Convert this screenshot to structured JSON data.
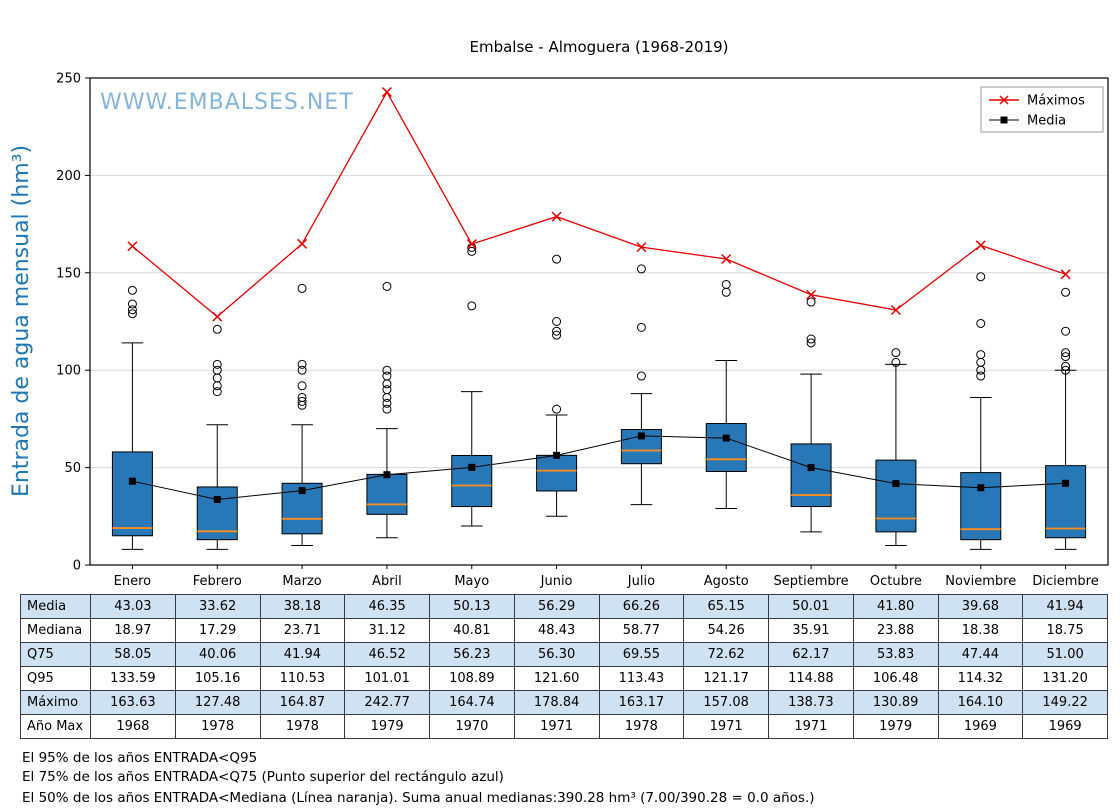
{
  "chart_data": {
    "type": "boxplot",
    "title": "Embalse - Almoguera (1968-2019)",
    "watermark": "WWW.EMBALSES.NET",
    "ylabel": "Entrada de agua mensual (hm³)",
    "ylim": [
      0,
      250
    ],
    "yticks": [
      0,
      50,
      100,
      150,
      200,
      250
    ],
    "grid": true,
    "categories": [
      "Enero",
      "Febrero",
      "Marzo",
      "Abril",
      "Mayo",
      "Junio",
      "Julio",
      "Agosto",
      "Septiembre",
      "Octubre",
      "Noviembre",
      "Diciembre"
    ],
    "legend": {
      "position": "top-right",
      "entries": [
        {
          "label": "Máximos",
          "marker": "x",
          "color": "#e50000"
        },
        {
          "label": "Media",
          "marker": "square",
          "color": "#000000"
        }
      ]
    },
    "series": {
      "media": [
        43.03,
        33.62,
        38.18,
        46.35,
        50.13,
        56.29,
        66.26,
        65.15,
        50.01,
        41.8,
        39.68,
        41.94
      ],
      "mediana": [
        18.97,
        17.29,
        23.71,
        31.12,
        40.81,
        48.43,
        58.77,
        54.26,
        35.91,
        23.88,
        18.38,
        18.75
      ],
      "q75": [
        58.05,
        40.06,
        41.94,
        46.52,
        56.23,
        56.3,
        69.55,
        72.62,
        62.17,
        53.83,
        47.44,
        51.0
      ],
      "q95": [
        133.59,
        105.16,
        110.53,
        101.01,
        108.89,
        121.6,
        113.43,
        121.17,
        114.88,
        106.48,
        114.32,
        131.2
      ],
      "maximo": [
        163.63,
        127.48,
        164.87,
        242.77,
        164.74,
        178.84,
        163.17,
        157.08,
        138.73,
        130.89,
        164.1,
        149.22
      ]
    },
    "anio_max": [
      1968,
      1978,
      1978,
      1979,
      1970,
      1971,
      1978,
      1971,
      1971,
      1979,
      1969,
      1969
    ],
    "box_geometry_estimated": {
      "q25": [
        15,
        13,
        16,
        26,
        30,
        38,
        52,
        48,
        30,
        17,
        13,
        14
      ],
      "whisker_low": [
        8,
        8,
        10,
        14,
        20,
        25,
        31,
        29,
        17,
        10,
        8,
        8
      ],
      "whisker_high": [
        114,
        72,
        72,
        70,
        89,
        77,
        88,
        105,
        98,
        103,
        86,
        100
      ],
      "outliers": [
        [
          129,
          131,
          134,
          141
        ],
        [
          89,
          92,
          96,
          100,
          103,
          121
        ],
        [
          82,
          84,
          86,
          92,
          100,
          103,
          142
        ],
        [
          80,
          83,
          86,
          90,
          93,
          97,
          100,
          143
        ],
        [
          133,
          161,
          163
        ],
        [
          80,
          118,
          120,
          125,
          157
        ],
        [
          97,
          122,
          152
        ],
        [
          140,
          144
        ],
        [
          114,
          116,
          135
        ],
        [
          104,
          109
        ],
        [
          97,
          100,
          104,
          108,
          124,
          148
        ],
        [
          100,
          102,
          107,
          109,
          120,
          140
        ]
      ]
    },
    "colors": {
      "box_fill": "#2878b8",
      "median_line": "#ff8c1a",
      "max_line": "#e50000",
      "mean_marker": "#000000",
      "ylabel": "#1f77b4",
      "watermark": "#85b4d9",
      "table_highlight": "#cfe2f3",
      "gridline": "#d8d8d8"
    }
  },
  "table": {
    "rows": [
      {
        "label": "Media",
        "values": [
          "43.03",
          "33.62",
          "38.18",
          "46.35",
          "50.13",
          "56.29",
          "66.26",
          "65.15",
          "50.01",
          "41.80",
          "39.68",
          "41.94"
        ]
      },
      {
        "label": "Mediana",
        "values": [
          "18.97",
          "17.29",
          "23.71",
          "31.12",
          "40.81",
          "48.43",
          "58.77",
          "54.26",
          "35.91",
          "23.88",
          "18.38",
          "18.75"
        ]
      },
      {
        "label": "Q75",
        "values": [
          "58.05",
          "40.06",
          "41.94",
          "46.52",
          "56.23",
          "56.30",
          "69.55",
          "72.62",
          "62.17",
          "53.83",
          "47.44",
          "51.00"
        ]
      },
      {
        "label": "Q95",
        "values": [
          "133.59",
          "105.16",
          "110.53",
          "101.01",
          "108.89",
          "121.60",
          "113.43",
          "121.17",
          "114.88",
          "106.48",
          "114.32",
          "131.20"
        ]
      },
      {
        "label": "Máximo",
        "values": [
          "163.63",
          "127.48",
          "164.87",
          "242.77",
          "164.74",
          "178.84",
          "163.17",
          "157.08",
          "138.73",
          "130.89",
          "164.10",
          "149.22"
        ]
      },
      {
        "label": "Año Max",
        "values": [
          "1968",
          "1978",
          "1978",
          "1979",
          "1970",
          "1971",
          "1978",
          "1971",
          "1971",
          "1979",
          "1969",
          "1969"
        ]
      }
    ]
  },
  "footnotes": [
    "El 95% de los años ENTRADA<Q95",
    "El 75% de los años ENTRADA<Q75 (Punto superior del rectángulo azul)",
    "El 50% de los años ENTRADA<Mediana (Línea naranja). Suma anual medianas:390.28 hm³ (7.00/390.28 = 0.0 años.)"
  ]
}
